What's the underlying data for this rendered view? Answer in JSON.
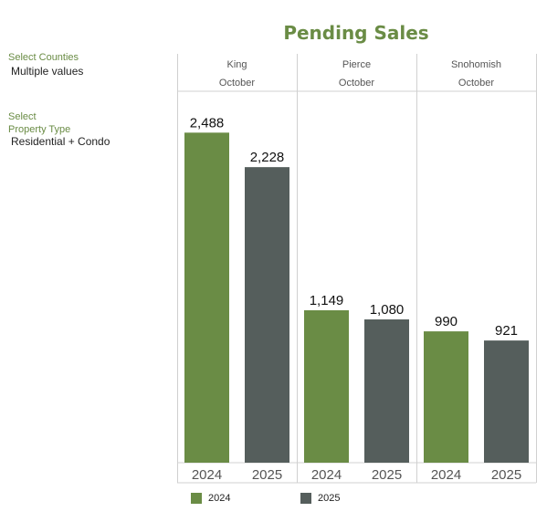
{
  "title": "Pending Sales",
  "filters": {
    "counties_label": "Select Counties",
    "counties_value": "Multiple values",
    "property_label_line1": "Select",
    "property_label_line2": "Property Type",
    "property_value": "Residential + Condo"
  },
  "colors": {
    "y2024": "#6a8c45",
    "y2025": "#555e5c"
  },
  "chart_data": {
    "type": "bar",
    "title": "Pending Sales",
    "panels": [
      {
        "county": "King",
        "period": "October",
        "values": [
          2488,
          2228
        ],
        "labels": [
          "2,488",
          "2,228"
        ]
      },
      {
        "county": "Pierce",
        "period": "October",
        "values": [
          1149,
          1080
        ],
        "labels": [
          "1,149",
          "1,080"
        ]
      },
      {
        "county": "Snohomish",
        "period": "October",
        "values": [
          990,
          921
        ],
        "labels": [
          "990",
          "921"
        ]
      }
    ],
    "categories": [
      "2024",
      "2025"
    ],
    "series": [
      {
        "name": "2024"
      },
      {
        "name": "2025"
      }
    ],
    "ylim": [
      0,
      2800
    ],
    "legend": "bottom"
  }
}
